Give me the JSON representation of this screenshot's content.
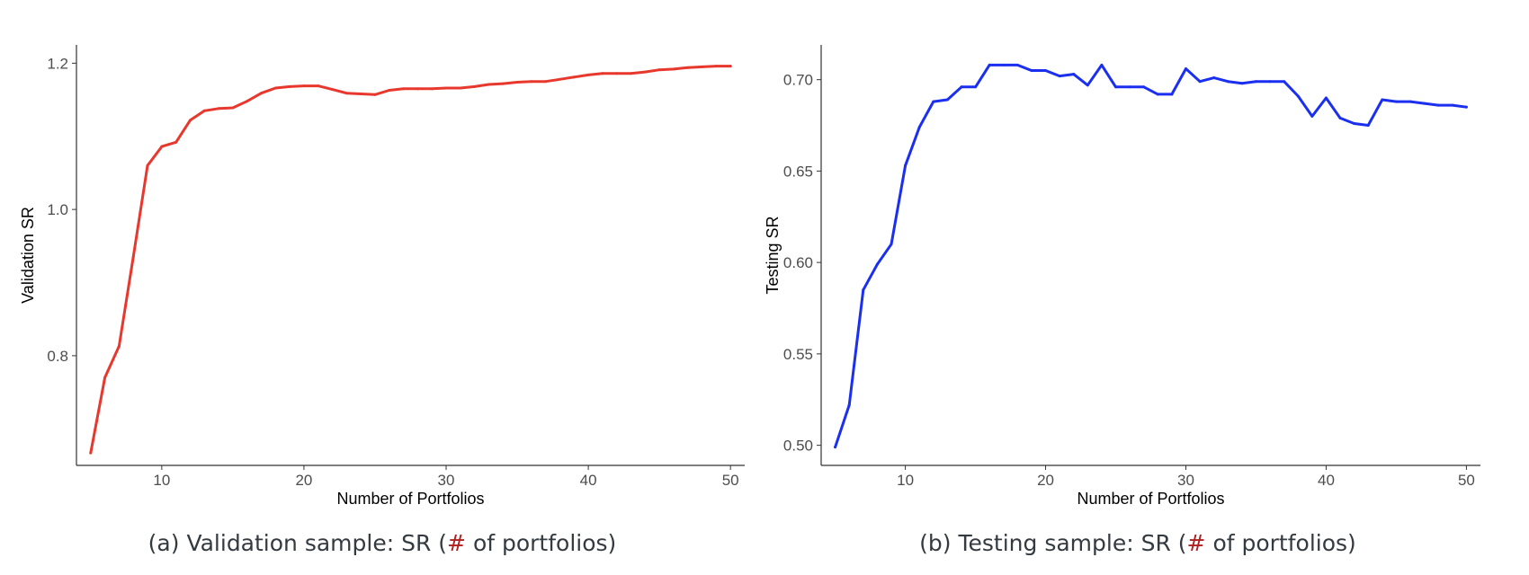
{
  "charts": [
    {
      "caption_prefix": "(a) Validation sample: SR (",
      "caption_symbol": "#",
      "caption_suffix": " of portfolios)",
      "chart_data": {
        "type": "line",
        "xlabel": "Number of Portfolios",
        "ylabel": "Validation SR",
        "xlim": [
          4,
          51
        ],
        "ylim": [
          0.65,
          1.225
        ],
        "xticks": [
          10,
          20,
          30,
          40,
          50
        ],
        "yticks": [
          0.8,
          1.0,
          1.2
        ],
        "ytick_labels": [
          "0.8",
          "1.0",
          "1.2"
        ],
        "grid": false,
        "color": "#e8382e",
        "x": [
          5,
          6,
          7,
          8,
          9,
          10,
          11,
          12,
          13,
          14,
          15,
          16,
          17,
          18,
          19,
          20,
          21,
          22,
          23,
          24,
          25,
          26,
          27,
          28,
          29,
          30,
          31,
          32,
          33,
          34,
          35,
          36,
          37,
          38,
          39,
          40,
          41,
          42,
          43,
          44,
          45,
          46,
          47,
          48,
          49,
          50
        ],
        "y": [
          0.667,
          0.77,
          0.813,
          0.935,
          1.06,
          1.086,
          1.092,
          1.122,
          1.135,
          1.138,
          1.139,
          1.148,
          1.159,
          1.166,
          1.168,
          1.169,
          1.169,
          1.164,
          1.159,
          1.158,
          1.157,
          1.163,
          1.165,
          1.165,
          1.165,
          1.166,
          1.166,
          1.168,
          1.171,
          1.172,
          1.174,
          1.175,
          1.175,
          1.178,
          1.181,
          1.184,
          1.186,
          1.186,
          1.186,
          1.188,
          1.191,
          1.192,
          1.194,
          1.195,
          1.196,
          1.196
        ]
      }
    },
    {
      "caption_prefix": "(b) Testing sample: SR (",
      "caption_symbol": "#",
      "caption_suffix": " of portfolios)",
      "chart_data": {
        "type": "line",
        "xlabel": "Number of Portfolios",
        "ylabel": "Testing SR",
        "xlim": [
          4,
          51
        ],
        "ylim": [
          0.489,
          0.719
        ],
        "xticks": [
          10,
          20,
          30,
          40,
          50
        ],
        "yticks": [
          0.5,
          0.55,
          0.6,
          0.65,
          0.7
        ],
        "ytick_labels": [
          "0.50",
          "0.55",
          "0.60",
          "0.65",
          "0.70"
        ],
        "grid": false,
        "color": "#1a2ff0",
        "x": [
          5,
          6,
          7,
          8,
          9,
          10,
          11,
          12,
          13,
          14,
          15,
          16,
          17,
          18,
          19,
          20,
          21,
          22,
          23,
          24,
          25,
          26,
          27,
          28,
          29,
          30,
          31,
          32,
          33,
          34,
          35,
          36,
          37,
          38,
          39,
          40,
          41,
          42,
          43,
          44,
          45,
          46,
          47,
          48,
          49,
          50
        ],
        "y": [
          0.499,
          0.522,
          0.585,
          0.599,
          0.61,
          0.653,
          0.674,
          0.688,
          0.689,
          0.696,
          0.696,
          0.708,
          0.708,
          0.708,
          0.705,
          0.705,
          0.702,
          0.703,
          0.697,
          0.708,
          0.696,
          0.696,
          0.696,
          0.692,
          0.692,
          0.706,
          0.699,
          0.701,
          0.699,
          0.698,
          0.699,
          0.699,
          0.699,
          0.691,
          0.68,
          0.69,
          0.679,
          0.676,
          0.675,
          0.689,
          0.688,
          0.688,
          0.687,
          0.686,
          0.686,
          0.685
        ]
      }
    }
  ]
}
